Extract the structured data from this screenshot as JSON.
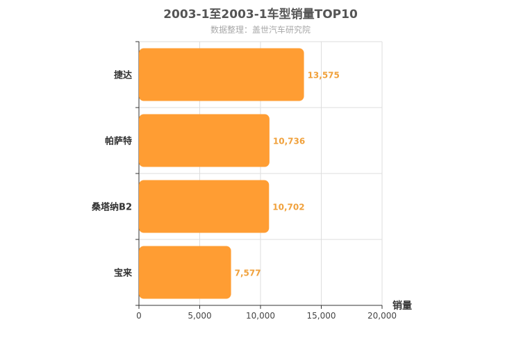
{
  "chart_data": {
    "type": "bar",
    "orientation": "horizontal",
    "title": "2003-1至2003-1车型销量TOP10",
    "subtitle": "数据整理：盖世汽车研究院",
    "categories": [
      "捷达",
      "帕萨特",
      "桑塔纳B2",
      "宝来"
    ],
    "values": [
      13575,
      10736,
      10702,
      7577
    ],
    "value_labels": [
      "13,575",
      "10,736",
      "10,702",
      "7,577"
    ],
    "xlabel": "销量",
    "ylabel": "",
    "xlim": [
      0,
      20000
    ],
    "x_ticks": [
      0,
      5000,
      10000,
      15000,
      20000
    ],
    "x_tick_labels": [
      "0",
      "5,000",
      "10,000",
      "15,000",
      "20,000"
    ],
    "grid": true,
    "bar_color": "#ff9d33",
    "label_color": "#f0a13c"
  }
}
